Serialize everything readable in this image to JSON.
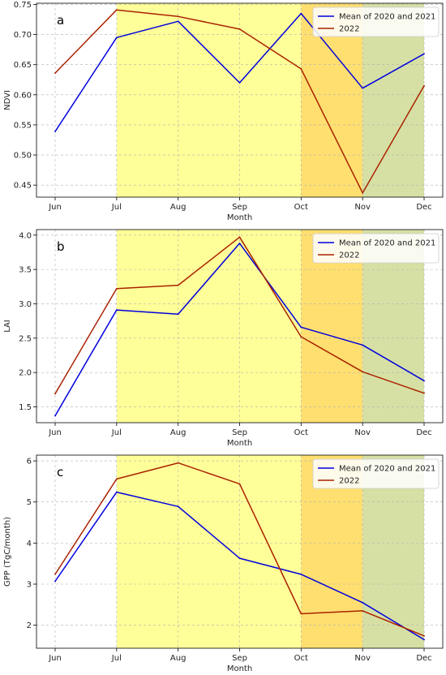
{
  "chart_data": [
    {
      "type": "line",
      "panel_label": "a",
      "categories": [
        "Jun",
        "Jul",
        "Aug",
        "Sep",
        "Oct",
        "Nov",
        "Dec"
      ],
      "xlabel": "Month",
      "ylabel": "NDVI",
      "ylim": [
        0.43,
        0.752
      ],
      "yticks": [
        "0.45",
        "0.50",
        "0.55",
        "0.60",
        "0.65",
        "0.70",
        "0.75"
      ],
      "grid": true,
      "legend_position": "top-right",
      "shaded_bands": [
        {
          "from": "Jul",
          "to": "Oct",
          "color": "#ffff99"
        },
        {
          "from": "Oct",
          "to": "Nov",
          "color": "#ffdf70"
        },
        {
          "from": "Nov",
          "to": "Dec",
          "color": "#d6e0a4"
        }
      ],
      "series": [
        {
          "name": "Mean of 2020 and 2021",
          "color": "#0000dd",
          "values": [
            0.539,
            0.695,
            0.722,
            0.62,
            0.735,
            0.611,
            0.668
          ]
        },
        {
          "name": "2022",
          "color": "#aa2200",
          "values": [
            0.636,
            0.741,
            0.73,
            0.709,
            0.643,
            0.437,
            0.615
          ]
        }
      ]
    },
    {
      "type": "line",
      "panel_label": "b",
      "categories": [
        "Jun",
        "Jul",
        "Aug",
        "Sep",
        "Oct",
        "Nov",
        "Dec"
      ],
      "xlabel": "Month",
      "ylabel": "LAI",
      "ylim": [
        1.27,
        4.08
      ],
      "yticks": [
        "1.5",
        "2.0",
        "2.5",
        "3.0",
        "3.5",
        "4.0"
      ],
      "grid": true,
      "legend_position": "top-right",
      "shaded_bands": [
        {
          "from": "Jul",
          "to": "Oct",
          "color": "#ffff99"
        },
        {
          "from": "Oct",
          "to": "Nov",
          "color": "#ffdf70"
        },
        {
          "from": "Nov",
          "to": "Dec",
          "color": "#d6e0a4"
        }
      ],
      "series": [
        {
          "name": "Mean of 2020 and 2021",
          "color": "#0000dd",
          "values": [
            1.37,
            2.91,
            2.85,
            3.88,
            2.66,
            2.4,
            1.88
          ]
        },
        {
          "name": "2022",
          "color": "#aa2200",
          "values": [
            1.69,
            3.22,
            3.27,
            3.97,
            2.52,
            2.01,
            1.7
          ]
        }
      ]
    },
    {
      "type": "line",
      "panel_label": "c",
      "categories": [
        "Jun",
        "Jul",
        "Aug",
        "Sep",
        "Oct",
        "Nov",
        "Dec"
      ],
      "xlabel": "Month",
      "ylabel": "GPP (TgC/month)",
      "ylim": [
        1.44,
        6.14
      ],
      "yticks": [
        "2",
        "3",
        "4",
        "5",
        "6"
      ],
      "grid": true,
      "legend_position": "top-right",
      "shaded_bands": [
        {
          "from": "Jul",
          "to": "Oct",
          "color": "#ffff99"
        },
        {
          "from": "Oct",
          "to": "Nov",
          "color": "#ffdf70"
        },
        {
          "from": "Nov",
          "to": "Dec",
          "color": "#d6e0a4"
        }
      ],
      "series": [
        {
          "name": "Mean of 2020 and 2021",
          "color": "#0000dd",
          "values": [
            3.07,
            5.24,
            4.89,
            3.63,
            3.24,
            2.55,
            1.65
          ]
        },
        {
          "name": "2022",
          "color": "#aa2200",
          "values": [
            3.24,
            5.56,
            5.95,
            5.44,
            2.28,
            2.35,
            1.74
          ]
        }
      ]
    }
  ]
}
